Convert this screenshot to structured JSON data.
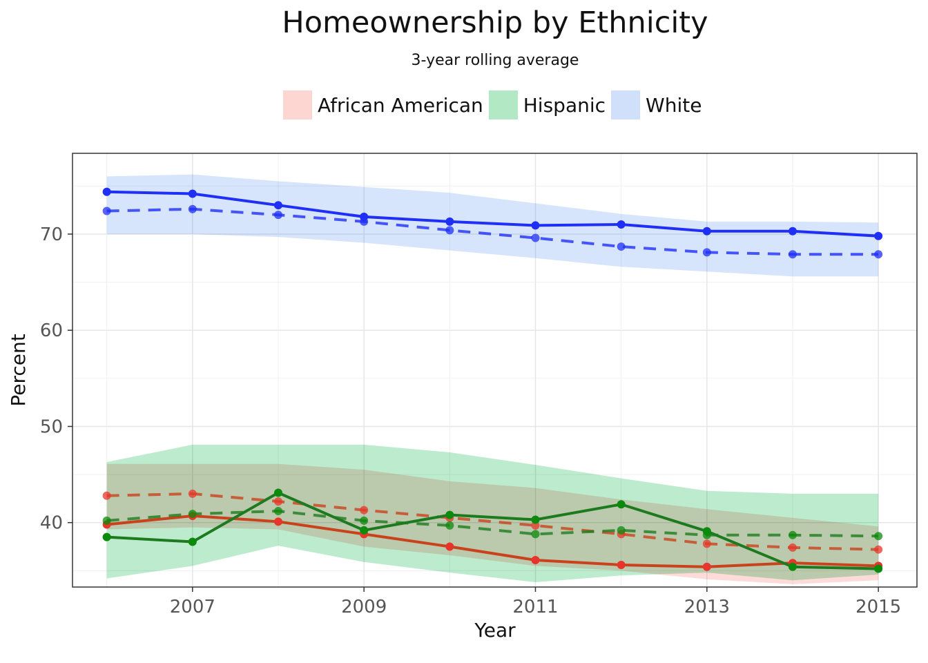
{
  "chart_data": {
    "type": "line",
    "title": "Homeownership by Ethnicity",
    "subtitle": "3-year rolling average",
    "xlabel": "Year",
    "ylabel": "Percent",
    "x": [
      2006,
      2007,
      2008,
      2009,
      2010,
      2011,
      2012,
      2013,
      2014,
      2015
    ],
    "x_ticks": [
      2007,
      2009,
      2011,
      2013,
      2015
    ],
    "x_tick_labels": [
      "2007",
      "2009",
      "2011",
      "2013",
      "2015"
    ],
    "y_ticks": [
      40,
      50,
      60,
      70
    ],
    "y_tick_labels": [
      "40",
      "50",
      "60",
      "70"
    ],
    "xlim": [
      2005.6,
      2015.45
    ],
    "ylim": [
      33.3,
      78.4
    ],
    "grid": true,
    "legend_position": "top",
    "series": [
      {
        "name": "African American",
        "color": "#c8421c",
        "point_color": "#e8352b",
        "fill": "#fdd5d1",
        "values": [
          39.8,
          40.7,
          40.1,
          38.8,
          37.5,
          36.1,
          35.6,
          35.4,
          35.8,
          35.5
        ],
        "rolling": [
          42.8,
          43.0,
          42.2,
          41.3,
          40.5,
          39.7,
          38.8,
          37.8,
          37.4,
          37.2
        ],
        "band_low": [
          39.3,
          39.5,
          39.3,
          37.5,
          36.6,
          35.5,
          35.0,
          34.1,
          33.6,
          34.0
        ],
        "band_high": [
          46.1,
          46.1,
          46.1,
          45.5,
          44.3,
          43.6,
          42.4,
          41.4,
          40.5,
          39.6
        ]
      },
      {
        "name": "Hispanic",
        "color": "#1e7a1e",
        "point_color": "#0b8a0b",
        "fill": "#b2e8c4",
        "values": [
          38.5,
          38.0,
          43.1,
          39.2,
          40.8,
          40.3,
          41.9,
          39.1,
          35.4,
          35.2
        ],
        "rolling": [
          40.2,
          40.9,
          41.2,
          40.2,
          39.7,
          38.8,
          39.2,
          38.7,
          38.7,
          38.6
        ],
        "band_low": [
          34.2,
          35.5,
          37.6,
          35.9,
          34.8,
          33.8,
          34.5,
          34.8,
          34.0,
          34.6
        ],
        "band_high": [
          46.3,
          48.1,
          48.1,
          48.1,
          47.3,
          46.0,
          44.6,
          43.3,
          43.0,
          43.0
        ]
      },
      {
        "name": "White",
        "color": "#1f2ff5",
        "point_color": "#1f2ff5",
        "fill": "#d0e0fb",
        "values": [
          74.4,
          74.2,
          73.0,
          71.8,
          71.3,
          70.9,
          71.0,
          70.3,
          70.3,
          69.8
        ],
        "rolling": [
          72.4,
          72.6,
          72.0,
          71.3,
          70.4,
          69.6,
          68.7,
          68.1,
          67.9,
          67.9
        ],
        "band_low": [
          70.0,
          70.0,
          69.7,
          69.1,
          68.3,
          67.5,
          66.6,
          66.1,
          65.6,
          65.6
        ],
        "band_high": [
          76.0,
          76.2,
          75.5,
          74.9,
          74.3,
          73.2,
          72.1,
          71.3,
          71.3,
          71.2
        ]
      }
    ]
  }
}
